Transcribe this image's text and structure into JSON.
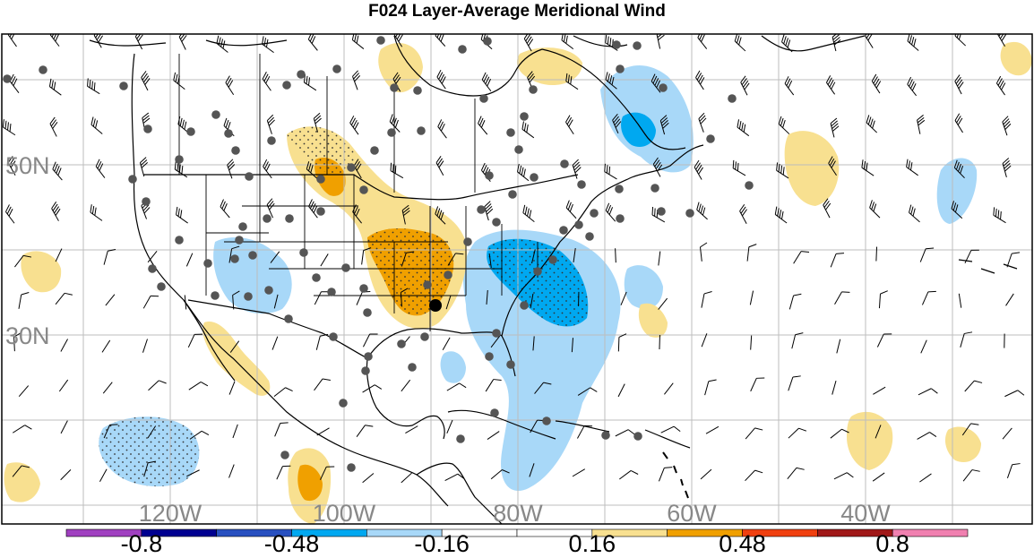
{
  "title": "F024 Layer-Average Meridional Wind",
  "map": {
    "lat_labels": [
      {
        "text": "50N",
        "lat": 50
      },
      {
        "text": "30N",
        "lat": 30
      }
    ],
    "lon_labels": [
      {
        "text": "120W",
        "lon": -120
      },
      {
        "text": "100W",
        "lon": -100
      },
      {
        "text": "80W",
        "lon": -80
      },
      {
        "text": "60W",
        "lon": -60
      },
      {
        "text": "40W",
        "lon": -40
      }
    ],
    "land_color": "#ffffff",
    "grid_color": "#bdbdbd",
    "station_color": "#555555",
    "target_color": "#000000"
  },
  "colorbar": {
    "labels": [
      "-0.8",
      "-0.48",
      "-0.16",
      "0.16",
      "0.48",
      "0.8"
    ],
    "colors": [
      "#a040c0",
      "#000090",
      "#2850c0",
      "#00a8f0",
      "#a8d8f8",
      "#ffffff",
      "#ffffff",
      "#f8e090",
      "#f0a000",
      "#f04010",
      "#a01818",
      "#f080b0"
    ]
  }
}
